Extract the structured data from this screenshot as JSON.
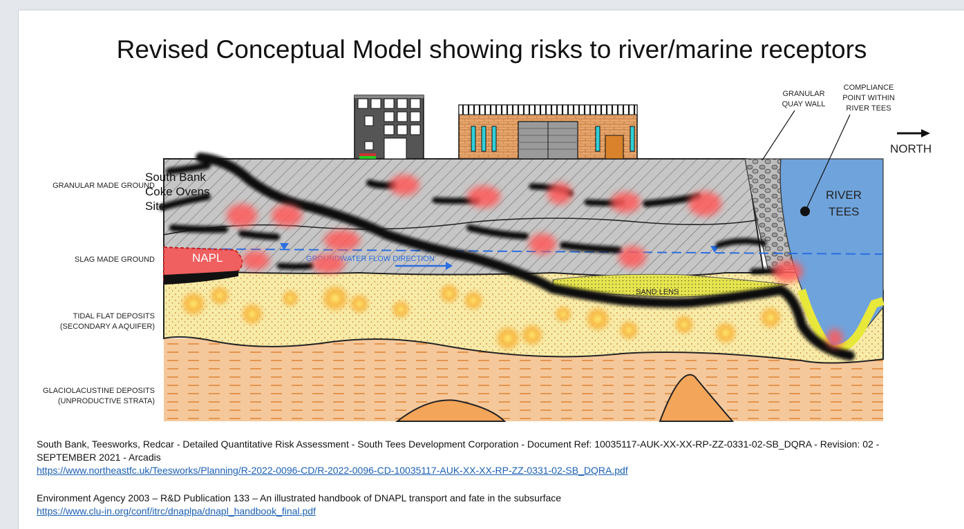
{
  "title": "Revised Conceptual Model showing risks to river/marine receptors",
  "layers": {
    "granular_made_ground": "GRANULAR MADE GROUND",
    "slag_made_ground": "SLAG MADE GROUND",
    "tidal_flat_1": "TIDAL FLAT DEPOSITS",
    "tidal_flat_2": "(SECONDARY A AQUIFER)",
    "glacio_1": "GLACIOLACUSTINE DEPOSITS",
    "glacio_2": "(UNPRODUCTIVE STRATA)"
  },
  "annotations": {
    "granular_quay_1": "GRANULAR",
    "granular_quay_2": "QUAY WALL",
    "compliance_1": "COMPLIANCE",
    "compliance_2": "POINT WITHIN",
    "compliance_3": "RIVER TEES",
    "north": "NORTH",
    "river_1": "RIVER",
    "river_2": "TEES",
    "napl": "NAPL",
    "groundwater_flow": "GROUNDWATER FLOW DIRECTION",
    "sand_lens": "SAND LENS"
  },
  "site_label": {
    "line1": "South Bank",
    "line2": "Coke Ovens",
    "line3": "Site"
  },
  "references": [
    {
      "text": "South Bank, Teesworks, Redcar - Detailed Quantitative Risk Assessment - South Tees Development Corporation - Document Ref: 10035117-AUK-XX-XX-RP-ZZ-0331-02-SB_DQRA - Revision: 02 - SEPTEMBER 2021 - Arcadis",
      "link": "https://www.northeastfc.uk/Teesworks/Planning/R-2022-0096-CD/R-2022-0096-CD-10035117-AUK-XX-XX-RP-ZZ-0331-02-SB_DQRA.pdf"
    },
    {
      "text": "Environment Agency 2003 – R&D Publication 133 – An illustrated handbook of DNAPL transport and fate in the subsurface",
      "link": "https://www.clu-in.org/conf/itrc/dnaplpa/dnapl_handbook_final.pdf"
    }
  ],
  "colors": {
    "made_ground": "#c7c7c7",
    "tidal_flat": "#f6e9a6",
    "glacio": "#f4c596",
    "river": "#6fa3dc",
    "napl": "#f25d5d",
    "water_table": "#2a6ee0"
  }
}
